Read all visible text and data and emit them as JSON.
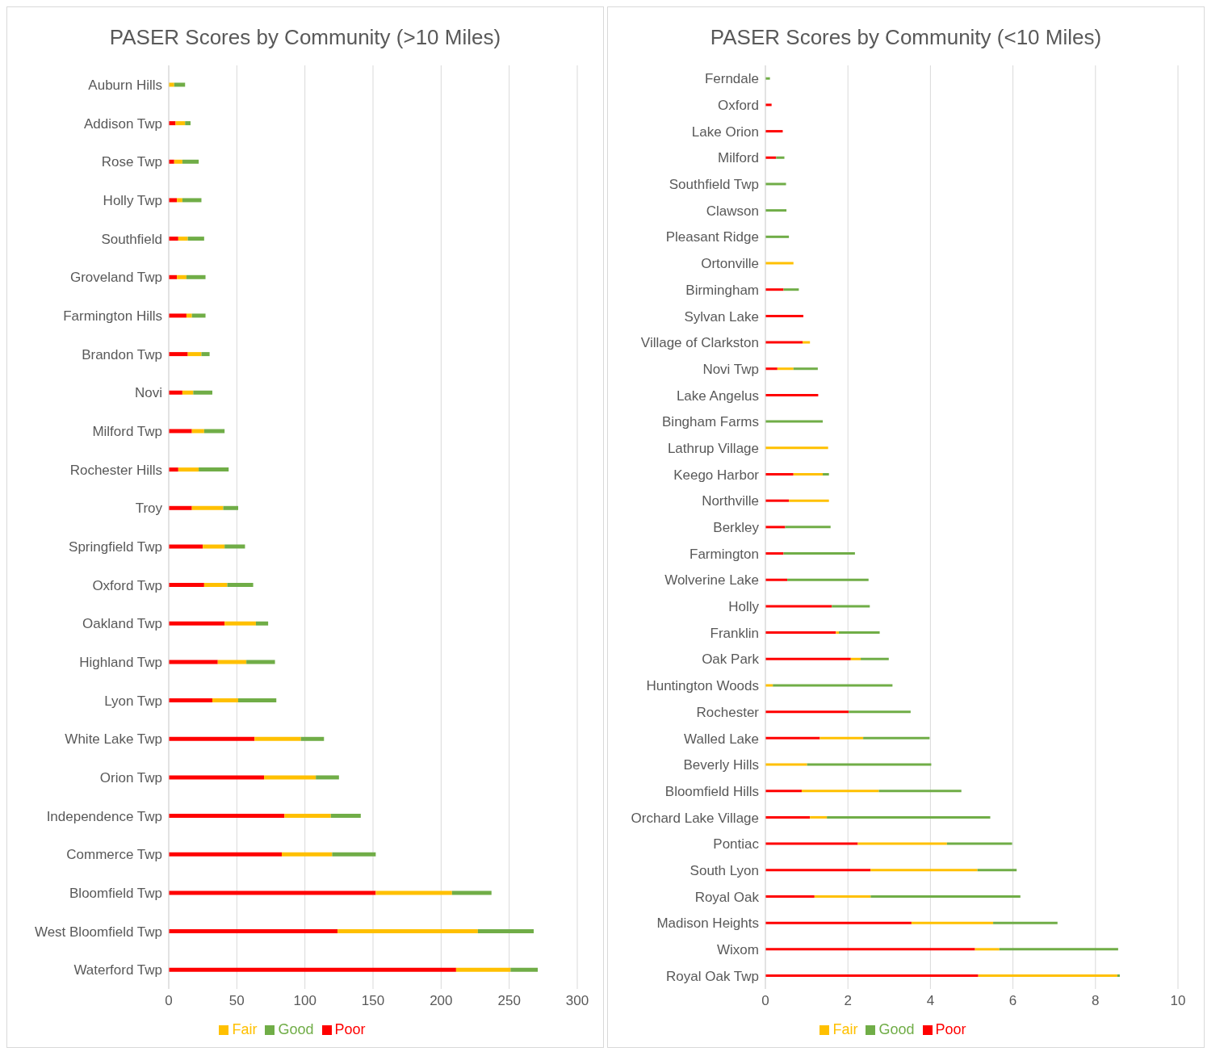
{
  "chart_data": [
    {
      "type": "bar",
      "orientation": "horizontal",
      "stacked": true,
      "title": "PASER Scores by Community (>10 Miles)",
      "categories": [
        "Auburn Hills",
        "Addison Twp",
        "Rose Twp",
        "Holly Twp",
        "Southfield",
        "Groveland Twp",
        "Farmington Hills",
        "Brandon Twp",
        "Novi",
        "Milford Twp",
        "Rochester Hills",
        "Troy",
        "Springfield Twp",
        "Oxford Twp",
        "Oakland Twp",
        "Highland Twp",
        "Lyon Twp",
        "White Lake Twp",
        "Orion Twp",
        "Independence Twp",
        "Commerce Twp",
        "Bloomfield Twp",
        "West Bloomfield Twp",
        "Waterford Twp"
      ],
      "series": [
        {
          "name": "Poor",
          "color": "#ff0000",
          "values": [
            0,
            5,
            4,
            6,
            7,
            6,
            13,
            14,
            10,
            17,
            7,
            17,
            25,
            26,
            41,
            36,
            32,
            63,
            70,
            85,
            83,
            152,
            124,
            211
          ]
        },
        {
          "name": "Fair",
          "color": "#ffc000",
          "values": [
            4,
            7,
            6,
            4,
            7,
            7,
            4,
            10,
            8,
            9,
            15,
            23,
            16,
            17,
            23,
            21,
            19,
            34,
            38,
            34,
            37,
            56,
            103,
            40
          ]
        },
        {
          "name": "Good",
          "color": "#70ad47",
          "values": [
            8,
            4,
            12,
            14,
            12,
            14,
            10,
            6,
            14,
            15,
            22,
            11,
            15,
            19,
            9,
            21,
            28,
            17,
            17,
            22,
            32,
            29,
            41,
            20
          ]
        }
      ],
      "xlim": [
        0,
        300
      ],
      "xticks": [
        0,
        50,
        100,
        150,
        200,
        250,
        300
      ],
      "grid": "x",
      "legend": "bottom"
    },
    {
      "type": "bar",
      "orientation": "horizontal",
      "stacked": true,
      "title": "PASER Scores by Community (<10 Miles)",
      "categories": [
        "Ferndale",
        "Oxford",
        "Lake Orion",
        "Milford",
        "Southfield Twp",
        "Clawson",
        "Pleasant Ridge",
        "Ortonville",
        "Birmingham",
        "Sylvan Lake",
        "Village of Clarkston",
        "Novi Twp",
        "Lake Angelus",
        "Bingham Farms",
        "Lathrup Village",
        "Keego Harbor",
        "Northville",
        "Berkley",
        "Farmington",
        "Wolverine Lake",
        "Holly",
        "Franklin",
        "Oak Park",
        "Huntington Woods",
        "Rochester",
        "Walled Lake",
        "Beverly Hills",
        "Bloomfield Hills",
        "Orchard Lake Village",
        "Pontiac",
        "South Lyon",
        "Royal Oak",
        "Madison Heights",
        "Wixom",
        "Royal Oak Twp"
      ],
      "series": [
        {
          "name": "Poor",
          "color": "#ff0000",
          "values": [
            0,
            0.15,
            0.42,
            0.26,
            0,
            0,
            0,
            0,
            0.44,
            0.92,
            0.9,
            0.29,
            1.28,
            0,
            0,
            0.68,
            0.57,
            0.48,
            0.44,
            0.53,
            1.61,
            1.71,
            2.07,
            0,
            2.02,
            1.32,
            0,
            0.88,
            1.08,
            2.24,
            2.55,
            1.19,
            3.54,
            5.08,
            5.16
          ]
        },
        {
          "name": "Fair",
          "color": "#ffc000",
          "values": [
            0,
            0,
            0,
            0,
            0,
            0,
            0,
            0.68,
            0,
            0,
            0.18,
            0.39,
            0,
            0,
            1.52,
            0.71,
            0.97,
            0,
            0,
            0,
            0,
            0.07,
            0.24,
            0.18,
            0,
            1.05,
            1.01,
            1.87,
            0.41,
            2.16,
            2.59,
            1.36,
            1.98,
            0.59,
            3.37
          ]
        },
        {
          "name": "Good",
          "color": "#70ad47",
          "values": [
            0.11,
            0,
            0,
            0.2,
            0.5,
            0.51,
            0.57,
            0,
            0.37,
            0,
            0,
            0.59,
            0,
            1.39,
            0,
            0.15,
            0,
            1.1,
            1.73,
            1.97,
            0.92,
            0.99,
            0.68,
            2.9,
            1.5,
            1.61,
            3.01,
            2,
            3.96,
            1.58,
            0.95,
            3.63,
            1.56,
            2.88,
            0.06
          ]
        }
      ],
      "xlim": [
        0,
        10
      ],
      "xticks": [
        0,
        2,
        4,
        6,
        8,
        10
      ],
      "grid": "x",
      "legend": "bottom"
    }
  ]
}
